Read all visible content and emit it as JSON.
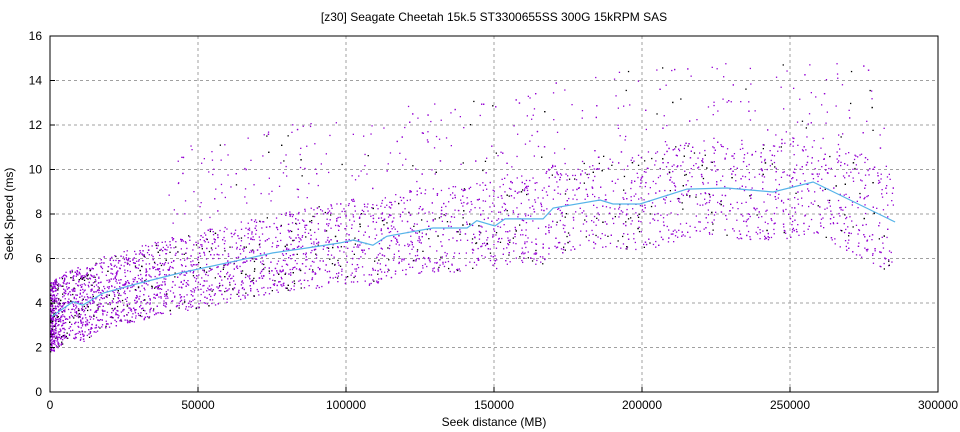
{
  "chart_data": {
    "type": "scatter",
    "title": "[z30] Seagate Cheetah 15k.5 ST3300655SS 300G 15kRPM SAS",
    "xlabel": "Seek distance (MB)",
    "ylabel": "Seek Speed (ms)",
    "xlim": [
      0,
      300000
    ],
    "ylim": [
      0,
      16
    ],
    "xticks": [
      0,
      50000,
      100000,
      150000,
      200000,
      250000,
      300000
    ],
    "yticks": [
      0,
      2,
      4,
      6,
      8,
      10,
      12,
      14,
      16
    ],
    "grid": true,
    "legend": "none",
    "colors": {
      "points": "#9400d3",
      "points_secondary": "#000000",
      "trend": "#56b4e9",
      "grid": "#a0a0a0"
    },
    "trend_line": {
      "x": [
        600,
        7800,
        11000,
        18000,
        30400,
        43900,
        64200,
        75300,
        86800,
        98000,
        102400,
        109100,
        113800,
        129400,
        140900,
        144200,
        150300,
        153700,
        166600,
        170000,
        185800,
        190200,
        199300,
        215200,
        228700,
        244300,
        257800,
        285500
      ],
      "y": [
        3.4,
        4.06,
        3.9,
        4.45,
        4.9,
        5.35,
        5.93,
        6.25,
        6.47,
        6.7,
        6.83,
        6.6,
        7.0,
        7.37,
        7.37,
        7.7,
        7.46,
        7.78,
        7.78,
        8.27,
        8.63,
        8.45,
        8.45,
        9.12,
        9.17,
        8.99,
        9.44,
        7.64
      ]
    }
  }
}
